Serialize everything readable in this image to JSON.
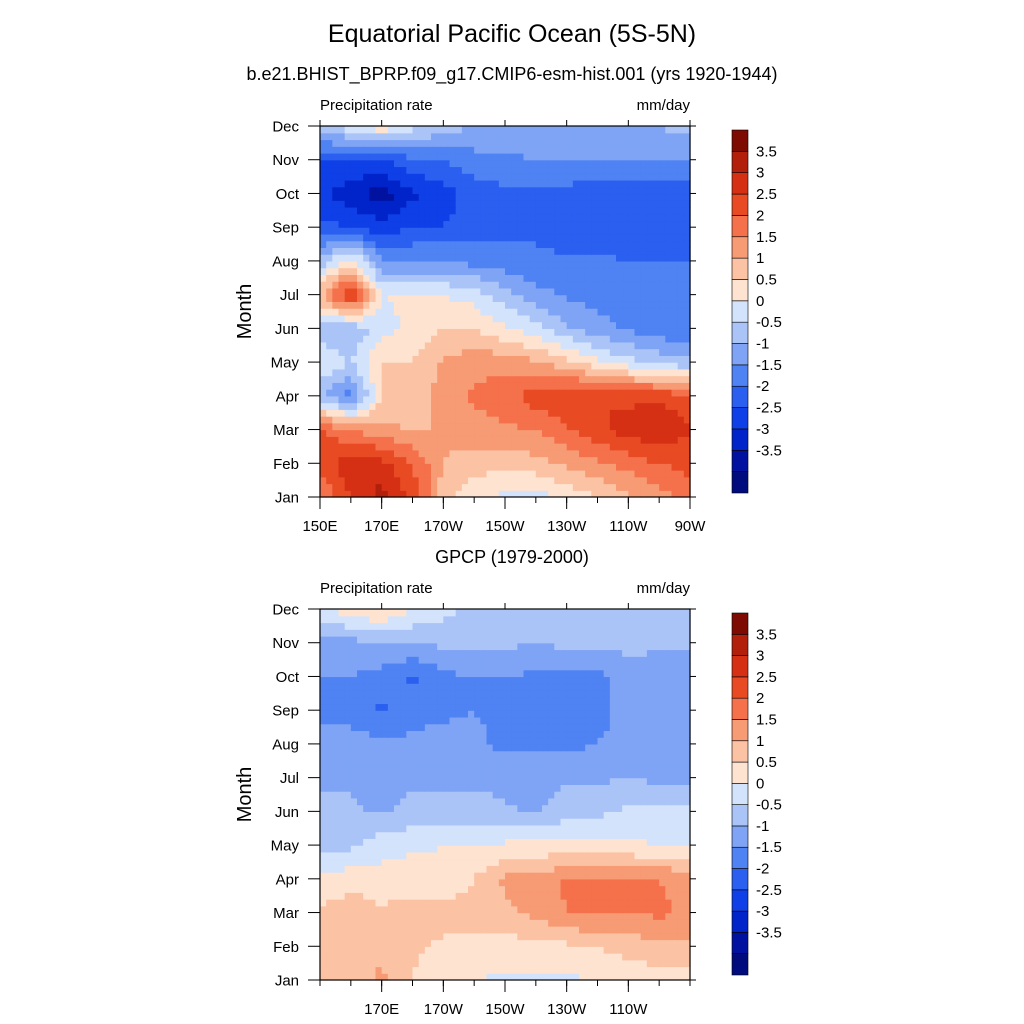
{
  "figure": {
    "title": "Equatorial Pacific Ocean (5S-5N)",
    "subtitle": "b.e21.BHIST_BPRP.f09_g17.CMIP6-esm-hist.001 (yrs 1920-1944)",
    "panel2_title": "GPCP (1979-2000)"
  },
  "colors": {
    "levels": [
      -4,
      -3.5,
      -3,
      -2.5,
      -2,
      -1.5,
      -1,
      -0.5,
      0,
      0.5,
      1,
      1.5,
      2,
      2.5,
      3,
      3.5,
      4
    ],
    "palette": [
      "#000c7e",
      "#00129f",
      "#0024c9",
      "#0f3fe6",
      "#2a5ff0",
      "#4f82f2",
      "#7fa4f5",
      "#abc4f8",
      "#d3e3fb",
      "#fde3d0",
      "#fbc2a4",
      "#f79b74",
      "#f5714b",
      "#e84a23",
      "#d63014",
      "#b2200c",
      "#7e0b02"
    ]
  },
  "chart_data": [
    {
      "type": "heatmap",
      "name": "model",
      "left_label": "Precipitation rate",
      "right_label": "mm/day",
      "ylabel": "Month",
      "xlabel": "",
      "x_ticklabels": [
        "150E",
        "170E",
        "170W",
        "150W",
        "130W",
        "110W",
        "90W"
      ],
      "y_ticklabels": [
        "Jan",
        "Feb",
        "Mar",
        "Apr",
        "May",
        "Jun",
        "Jul",
        "Aug",
        "Sep",
        "Oct",
        "Nov",
        "Dec"
      ],
      "colorbar_labels": [
        "3.5",
        "3",
        "2.5",
        "2",
        "1.5",
        "1",
        "0.5",
        "0",
        "-0.5",
        "-1",
        "-1.5",
        "-2",
        "-2.5",
        "-3",
        "-3.5"
      ],
      "xlim": [
        150,
        270
      ],
      "x": [
        150,
        160,
        170,
        180,
        190,
        200,
        210,
        220,
        230,
        240,
        250,
        260,
        270
      ],
      "values": [
        [
          2.0,
          3.0,
          3.7,
          2.8,
          1.2,
          0.6,
          0.4,
          0.3,
          0.6,
          1.0,
          1.4,
          1.8,
          2.2
        ],
        [
          2.8,
          3.3,
          3.2,
          2.5,
          1.5,
          1.2,
          1.2,
          1.3,
          1.6,
          1.9,
          2.2,
          2.5,
          2.7
        ],
        [
          2.6,
          2.0,
          1.7,
          1.4,
          1.6,
          1.8,
          1.9,
          2.0,
          2.4,
          2.9,
          3.2,
          3.4,
          3.0
        ],
        [
          -0.4,
          -1.2,
          1.0,
          1.2,
          1.7,
          2.1,
          2.3,
          2.8,
          3.0,
          3.0,
          2.9,
          2.9,
          2.7
        ],
        [
          0.4,
          0.0,
          1.0,
          1.0,
          1.6,
          1.8,
          1.8,
          1.6,
          1.2,
          0.6,
          0.2,
          -0.2,
          -0.4
        ],
        [
          -0.3,
          -0.5,
          0.3,
          0.6,
          1.0,
          1.0,
          0.6,
          0.2,
          -0.4,
          -0.8,
          -1.1,
          -1.3,
          -1.4
        ],
        [
          1.5,
          3.2,
          0.5,
          0.6,
          0.5,
          0.3,
          -0.3,
          -0.8,
          -1.1,
          -1.2,
          -1.3,
          -1.4,
          -1.4
        ],
        [
          -0.3,
          0.8,
          -1.0,
          -1.0,
          -1.0,
          -1.2,
          -1.3,
          -1.4,
          -1.4,
          -1.4,
          -1.5,
          -1.5,
          -1.5
        ],
        [
          -1.8,
          -2.0,
          -2.3,
          -2.0,
          -2.0,
          -1.8,
          -1.6,
          -1.6,
          -1.8,
          -1.9,
          -1.9,
          -1.9,
          -1.9
        ],
        [
          -2.4,
          -2.8,
          -3.3,
          -2.6,
          -2.2,
          -1.8,
          -1.6,
          -1.6,
          -1.7,
          -1.8,
          -1.8,
          -1.8,
          -1.8
        ],
        [
          -2.0,
          -2.0,
          -2.0,
          -1.6,
          -1.5,
          -1.2,
          -1.1,
          -1.0,
          -1.0,
          -1.0,
          -1.0,
          -1.0,
          -1.0
        ],
        [
          -0.3,
          0.3,
          0.9,
          0.2,
          -0.3,
          -0.5,
          -0.7,
          -0.7,
          -0.7,
          -0.7,
          -0.5,
          -0.5,
          -0.3
        ]
      ]
    },
    {
      "type": "heatmap",
      "name": "observations",
      "left_label": "Precipitation rate",
      "right_label": "mm/day",
      "ylabel": "Month",
      "xlabel": "",
      "x_ticklabels": [
        "170E",
        "170W",
        "150W",
        "130W",
        "110W"
      ],
      "y_ticklabels": [
        "Jan",
        "Feb",
        "Mar",
        "Apr",
        "May",
        "Jun",
        "Jul",
        "Aug",
        "Sep",
        "Oct",
        "Nov",
        "Dec"
      ],
      "colorbar_labels": [
        "3.5",
        "3",
        "2.5",
        "2",
        "1.5",
        "1",
        "0.5",
        "0",
        "-0.5",
        "-1",
        "-1.5",
        "-2",
        "-2.5",
        "-3",
        "-3.5"
      ],
      "xlim": [
        150,
        270
      ],
      "x": [
        150,
        160,
        170,
        180,
        190,
        200,
        210,
        220,
        230,
        240,
        250,
        260,
        270
      ],
      "values": [
        [
          1.1,
          1.3,
          1.6,
          1.0,
          0.6,
          0.5,
          0.4,
          0.4,
          0.4,
          0.5,
          0.6,
          0.7,
          0.8
        ],
        [
          1.3,
          1.1,
          1.4,
          1.1,
          0.9,
          0.8,
          0.8,
          0.8,
          0.9,
          1.0,
          1.2,
          1.4,
          1.4
        ],
        [
          1.1,
          1.3,
          1.1,
          1.2,
          1.2,
          1.2,
          1.4,
          1.6,
          2.0,
          2.1,
          2.0,
          2.1,
          1.9
        ],
        [
          0.6,
          0.8,
          0.7,
          0.8,
          0.7,
          1.0,
          1.6,
          1.6,
          2.1,
          2.1,
          2.0,
          2.0,
          1.8
        ],
        [
          -0.2,
          -0.1,
          0.3,
          0.4,
          0.5,
          0.5,
          0.6,
          0.7,
          0.6,
          0.6,
          0.6,
          0.5,
          0.5
        ],
        [
          -0.3,
          -0.4,
          -0.6,
          -0.3,
          -0.3,
          -0.3,
          -0.4,
          -0.6,
          -0.2,
          -0.1,
          0.1,
          0.1,
          0.2
        ],
        [
          -0.6,
          -0.6,
          -0.7,
          -0.6,
          -0.6,
          -0.6,
          -0.7,
          -0.7,
          -0.6,
          -0.6,
          -0.5,
          -0.6,
          -0.6
        ],
        [
          -0.7,
          -0.8,
          -0.8,
          -0.9,
          -0.8,
          -0.9,
          -1.1,
          -1.1,
          -1.1,
          -1.0,
          -0.9,
          -0.8,
          -0.8
        ],
        [
          -1.3,
          -1.2,
          -1.6,
          -1.2,
          -1.1,
          -1.0,
          -1.1,
          -1.2,
          -1.2,
          -1.1,
          -0.9,
          -0.8,
          -0.9
        ],
        [
          -1.0,
          -1.0,
          -1.2,
          -1.6,
          -1.1,
          -1.0,
          -1.0,
          -1.1,
          -1.1,
          -1.1,
          -0.9,
          -1.0,
          -1.0
        ],
        [
          -0.8,
          -0.7,
          -0.5,
          -0.5,
          -0.4,
          -0.4,
          -0.4,
          -0.5,
          -0.4,
          -0.4,
          -0.3,
          -0.3,
          -0.4
        ],
        [
          0.3,
          0.8,
          1.1,
          0.5,
          0.2,
          -0.2,
          -0.2,
          -0.2,
          -0.3,
          -0.3,
          -0.3,
          -0.3,
          -0.3
        ]
      ]
    }
  ]
}
